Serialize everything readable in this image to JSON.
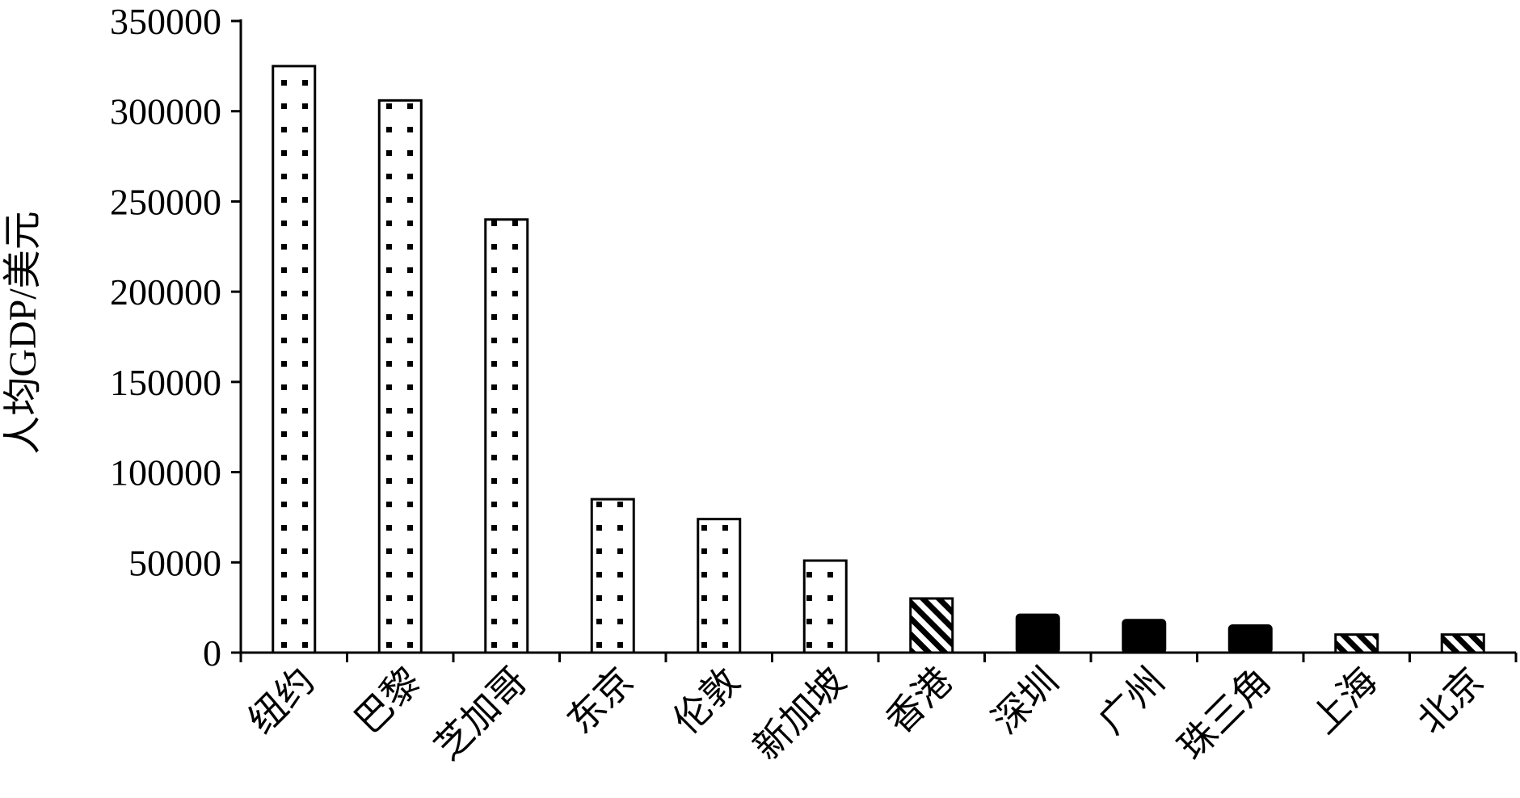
{
  "chart_data": {
    "type": "bar",
    "title": "",
    "xlabel": "",
    "ylabel": "人均GDP/美元",
    "ylim": [
      0,
      350000
    ],
    "yticks": [
      0,
      50000,
      100000,
      150000,
      200000,
      250000,
      300000,
      350000
    ],
    "ytick_labels": [
      "0",
      "50000",
      "100000",
      "150000",
      "200000",
      "250000",
      "300000",
      "350000"
    ],
    "categories": [
      "纽约",
      "巴黎",
      "芝加哥",
      "东京",
      "伦敦",
      "新加坡",
      "香港",
      "深圳",
      "广州",
      "珠三角",
      "上海",
      "北京"
    ],
    "values": [
      325000,
      306000,
      240000,
      85000,
      74000,
      51000,
      30000,
      21000,
      18000,
      15000,
      10000,
      10000
    ],
    "bar_patterns": [
      "dots",
      "dots",
      "dots",
      "dots",
      "dots",
      "dots",
      "hatch",
      "solid",
      "solid",
      "solid",
      "hatch",
      "hatch"
    ],
    "grid": false,
    "legend": "none"
  }
}
